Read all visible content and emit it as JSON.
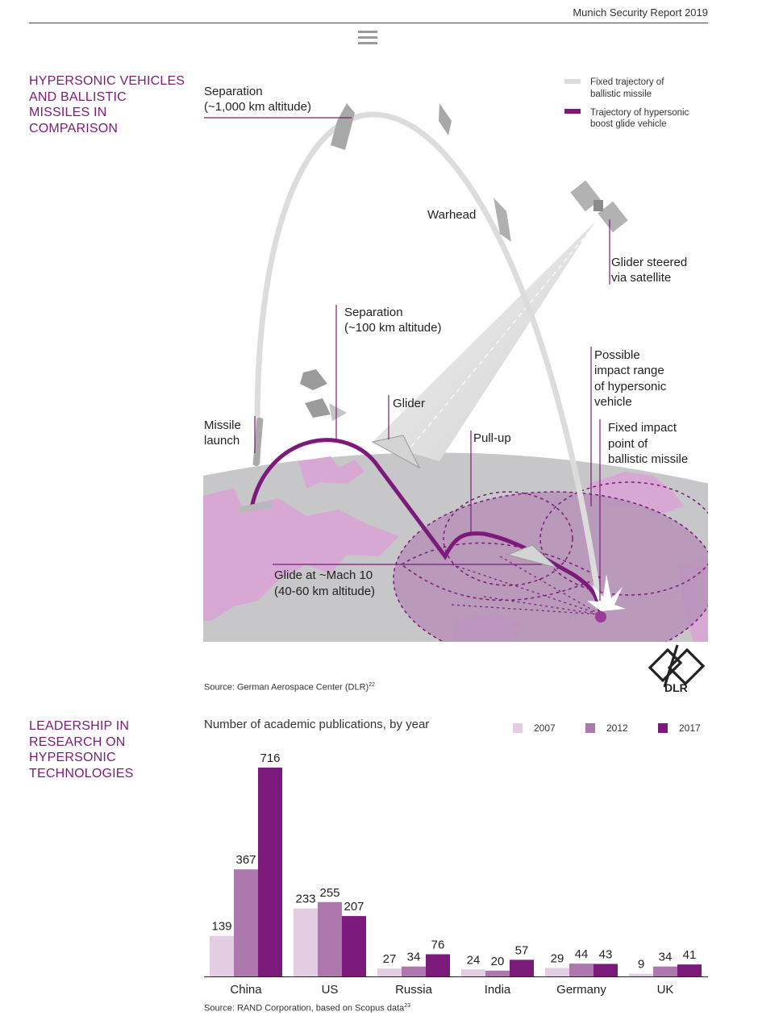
{
  "header": {
    "title": "Munich Security Report 2019"
  },
  "section1": {
    "title": "HYPERSONIC VEHICLES\nAND BALLISTIC\nMISSILES IN\nCOMPARISON",
    "legend": {
      "fixed_trajectory": "Fixed trajectory of\nballistic missile",
      "hypersonic_trajectory": "Trajectory of hypersonic\nboost glide vehicle"
    },
    "labels": {
      "separation_high_1": "Separation",
      "separation_high_2": "(~1,000 km altitude)",
      "warhead": "Warhead",
      "glider_satellite_1": "Glider steered",
      "glider_satellite_2": "via satellite",
      "separation_low_1": "Separation",
      "separation_low_2": "(~100 km altitude)",
      "impact_range_1": "Possible",
      "impact_range_2": "impact range",
      "impact_range_3": "of hypersonic",
      "impact_range_4": "vehicle",
      "glider": "Glider",
      "missile_launch_1": "Missile",
      "missile_launch_2": "launch",
      "pull_up": "Pull-up",
      "fixed_impact_1": "Fixed impact",
      "fixed_impact_2": "point of",
      "fixed_impact_3": "ballistic missile",
      "glide_1": "Glide at ~Mach 10",
      "glide_2": "(40-60 km altitude)"
    },
    "source": "Source: German Aerospace Center (DLR)",
    "source_ref": "22",
    "logo_text": "DLR"
  },
  "section2": {
    "title": "LEADERSHIP IN\nRESEARCH ON\nHYPERSONIC\nTECHNOLOGIES",
    "chart_title": "Number of academic publications, by year",
    "source": "Source: RAND Corporation, based on Scopus data",
    "source_ref": "23"
  },
  "colors": {
    "accent": "#7b1a7a",
    "y2007": "#e2cde2",
    "y2012": "#ad78ad",
    "y2017": "#7b1a7a"
  },
  "chart_data": {
    "type": "bar",
    "title": "Number of academic publications, by year",
    "categories": [
      "China",
      "US",
      "Russia",
      "India",
      "Germany",
      "UK"
    ],
    "series": [
      {
        "name": "2007",
        "values": [
          139,
          233,
          27,
          24,
          29,
          9
        ]
      },
      {
        "name": "2012",
        "values": [
          367,
          255,
          34,
          20,
          44,
          34
        ]
      },
      {
        "name": "2017",
        "values": [
          716,
          207,
          76,
          57,
          43,
          41
        ]
      }
    ],
    "ylim": [
      0,
      716
    ],
    "grid": false,
    "legend": "top-right"
  }
}
